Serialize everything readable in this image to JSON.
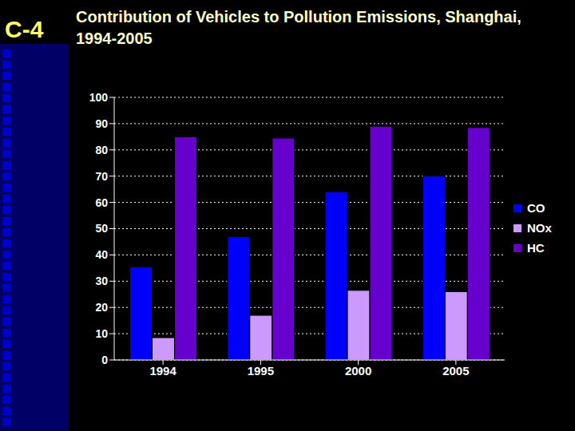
{
  "chart_data": {
    "type": "bar",
    "title": "Contribution of Vehicles to Pollution Emissions, Shanghai, 1994-2005",
    "annotations": [
      "C-4"
    ],
    "categories": [
      "1994",
      "1995",
      "2000",
      "2005"
    ],
    "series": [
      {
        "name": "CO",
        "color": "#0000ff",
        "values": [
          35.5,
          47,
          64,
          70
        ]
      },
      {
        "name": "NOx",
        "color": "#cc99ff",
        "values": [
          8.5,
          17,
          26.5,
          26
        ]
      },
      {
        "name": "HC",
        "color": "#6600cc",
        "values": [
          85,
          84.5,
          89,
          88.5
        ]
      }
    ],
    "ylim": [
      0,
      100
    ],
    "yticks": [
      0,
      10,
      20,
      30,
      40,
      50,
      60,
      70,
      80,
      90,
      100
    ],
    "grid": true,
    "legend": "right"
  }
}
